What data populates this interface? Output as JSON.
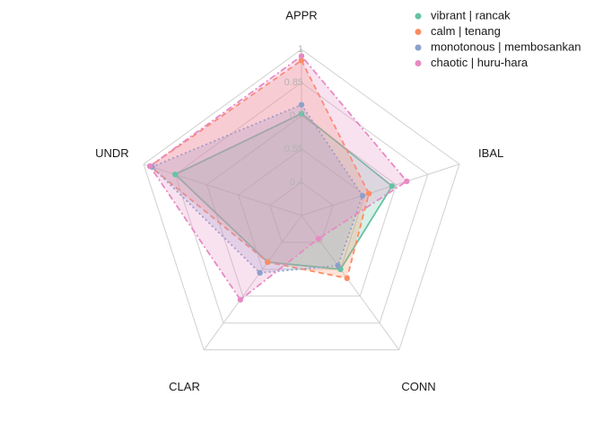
{
  "chart_data": {
    "type": "radar",
    "categories": [
      "APPR",
      "IBAL",
      "CONN",
      "CLAR",
      "UNDR"
    ],
    "rlim": [
      0.25,
      1
    ],
    "rticks": [
      0.4,
      0.55,
      0.7,
      0.85,
      1
    ],
    "grid": true,
    "legend": "top-right",
    "series": [
      {
        "name": "vibrant | rancak",
        "color": "#66c2a5",
        "line_style": "solid",
        "values": [
          0.71,
          0.68,
          0.55,
          0.51,
          0.85
        ]
      },
      {
        "name": "calm | tenang",
        "color": "#fc8d62",
        "line_style": "dashed",
        "values": [
          0.95,
          0.57,
          0.6,
          0.51,
          0.97
        ]
      },
      {
        "name": "monotonous | membosankan",
        "color": "#8da0cb",
        "line_style": "dotted",
        "values": [
          0.75,
          0.54,
          0.53,
          0.57,
          0.96
        ]
      },
      {
        "name": "chaotic | huru-hara",
        "color": "#e78ac3",
        "line_style": "dotdash",
        "values": [
          0.97,
          0.75,
          0.38,
          0.72,
          0.97
        ]
      }
    ]
  }
}
